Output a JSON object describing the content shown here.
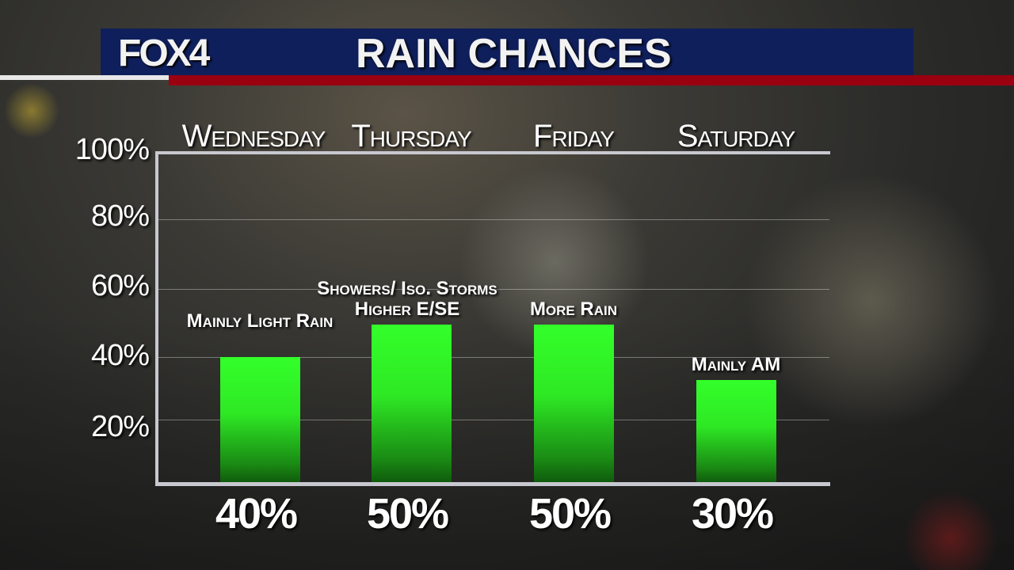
{
  "header": {
    "logo": "FOX4",
    "title": "RAIN CHANCES"
  },
  "colors": {
    "header_bg": "#0f1f5c",
    "accent_red": "#990010",
    "bar": "#33ff2a"
  },
  "chart_data": {
    "type": "bar",
    "title": "RAIN CHANCES",
    "categories": [
      "Wednesday",
      "Thursday",
      "Friday",
      "Saturday"
    ],
    "values": [
      40,
      50,
      50,
      30
    ],
    "value_labels": [
      "40%",
      "50%",
      "50%",
      "30%"
    ],
    "annotations": [
      "Mainly Light Rain",
      "Showers/ Iso. Storms Higher E/SE",
      "More Rain",
      "Mainly AM"
    ],
    "yticks": [
      "100%",
      "80%",
      "60%",
      "40%",
      "20%"
    ],
    "ylim": [
      0,
      100
    ],
    "grid": true,
    "xlabel": "",
    "ylabel": ""
  }
}
